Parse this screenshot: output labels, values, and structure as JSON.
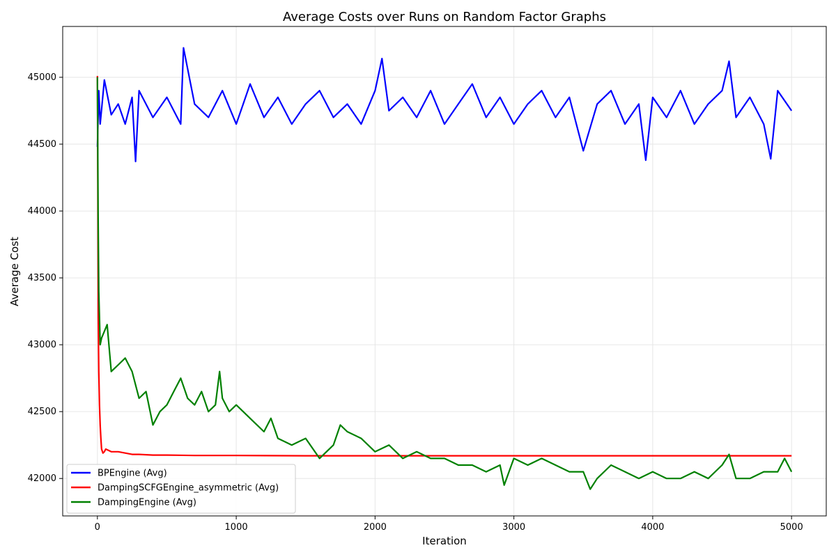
{
  "chart_data": {
    "type": "line",
    "title": "Average Costs over Runs on Random Factor Graphs",
    "xlabel": "Iteration",
    "ylabel": "Average Cost",
    "xlim": [
      -250,
      5250
    ],
    "ylim": [
      41720,
      45380
    ],
    "x_ticks": [
      0,
      1000,
      2000,
      3000,
      4000,
      5000
    ],
    "y_ticks": [
      42000,
      42500,
      43000,
      43500,
      44000,
      44500,
      45000
    ],
    "grid": true,
    "legend_position": "lower-left",
    "series": [
      {
        "name": "BPEngine (Avg)",
        "color": "#0000ff",
        "x": [
          0,
          10,
          20,
          50,
          100,
          150,
          200,
          250,
          275,
          300,
          400,
          500,
          600,
          620,
          700,
          800,
          900,
          1000,
          1050,
          1100,
          1200,
          1300,
          1400,
          1500,
          1600,
          1700,
          1800,
          1900,
          2000,
          2050,
          2100,
          2200,
          2300,
          2400,
          2500,
          2600,
          2700,
          2800,
          2900,
          3000,
          3100,
          3200,
          3300,
          3400,
          3500,
          3600,
          3700,
          3800,
          3900,
          3950,
          4000,
          4100,
          4200,
          4300,
          4400,
          4500,
          4550,
          4600,
          4700,
          4800,
          4850,
          4900,
          5000
        ],
        "y": [
          44480,
          44900,
          44650,
          44980,
          44720,
          44800,
          44650,
          44850,
          44370,
          44900,
          44700,
          44850,
          44650,
          45220,
          44800,
          44700,
          44900,
          44650,
          44800,
          44950,
          44700,
          44850,
          44650,
          44800,
          44900,
          44700,
          44800,
          44650,
          44900,
          45140,
          44750,
          44850,
          44700,
          44900,
          44650,
          44800,
          44950,
          44700,
          44850,
          44650,
          44800,
          44900,
          44700,
          44850,
          44450,
          44800,
          44900,
          44650,
          44800,
          44380,
          44850,
          44700,
          44900,
          44650,
          44800,
          44900,
          45120,
          44700,
          44850,
          44650,
          44390,
          44900,
          44750
        ]
      },
      {
        "name": "DampingSCFGEngine_asymmetric (Avg)",
        "color": "#ff0000",
        "x": [
          0,
          3,
          6,
          10,
          15,
          20,
          25,
          30,
          40,
          50,
          60,
          80,
          100,
          150,
          200,
          250,
          300,
          400,
          500,
          700,
          1000,
          1500,
          2000,
          3000,
          4000,
          5000
        ],
        "y": [
          45010,
          44200,
          43200,
          42800,
          42550,
          42400,
          42300,
          42220,
          42190,
          42200,
          42220,
          42210,
          42200,
          42200,
          42190,
          42180,
          42180,
          42175,
          42175,
          42172,
          42172,
          42170,
          42170,
          42170,
          42170,
          42170
        ]
      },
      {
        "name": "DampingEngine (Avg)",
        "color": "#008000",
        "x": [
          0,
          5,
          10,
          20,
          30,
          50,
          70,
          100,
          150,
          200,
          250,
          300,
          350,
          400,
          450,
          500,
          550,
          600,
          650,
          700,
          750,
          800,
          850,
          880,
          900,
          950,
          1000,
          1100,
          1200,
          1250,
          1300,
          1400,
          1500,
          1600,
          1700,
          1750,
          1800,
          1900,
          2000,
          2100,
          2200,
          2300,
          2400,
          2500,
          2600,
          2700,
          2800,
          2900,
          2930,
          3000,
          3100,
          3200,
          3300,
          3400,
          3500,
          3550,
          3600,
          3700,
          3800,
          3900,
          4000,
          4100,
          4200,
          4300,
          4400,
          4500,
          4550,
          4600,
          4700,
          4800,
          4900,
          4950,
          5000
        ],
        "y": [
          45000,
          44000,
          43400,
          43000,
          43050,
          43100,
          43150,
          42800,
          42850,
          42900,
          42800,
          42600,
          42650,
          42400,
          42500,
          42550,
          42650,
          42750,
          42600,
          42550,
          42650,
          42500,
          42550,
          42800,
          42600,
          42500,
          42550,
          42450,
          42350,
          42450,
          42300,
          42250,
          42300,
          42150,
          42250,
          42400,
          42350,
          42300,
          42200,
          42250,
          42150,
          42200,
          42150,
          42150,
          42100,
          42100,
          42050,
          42100,
          41950,
          42150,
          42100,
          42150,
          42100,
          42050,
          42050,
          41920,
          42000,
          42100,
          42050,
          42000,
          42050,
          42000,
          42000,
          42050,
          42000,
          42100,
          42180,
          42000,
          42000,
          42050,
          42050,
          42150,
          42050
        ]
      }
    ]
  }
}
